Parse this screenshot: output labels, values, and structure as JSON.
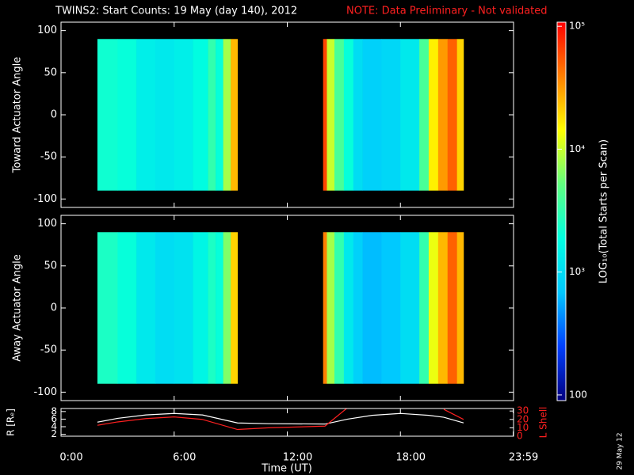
{
  "title": "TWINS2: Start Counts: 19 May (day 140), 2012",
  "note": "NOTE: Data Preliminary - Not validated",
  "xlabel": "Time (UT)",
  "date_stamp": "29 May 12",
  "colorbar": {
    "label": "LOG₁₀(Total Starts per Scan)",
    "log": true,
    "lim": [
      90,
      108000
    ],
    "ticks": [
      100,
      {
        "value": 1000,
        "label": "10³"
      },
      {
        "value": 10000,
        "label": "10⁴"
      },
      {
        "value": 100000,
        "label": "10⁵"
      }
    ],
    "colormap": [
      "#000080",
      "#0040ff",
      "#00c8ff",
      "#00ffe0",
      "#60ff80",
      "#ffff00",
      "#ff8000",
      "#ff0000"
    ]
  },
  "chart_data": [
    {
      "type": "heatmap",
      "ylabel": "Toward Actuator Angle",
      "xlim": [
        0,
        24
      ],
      "xticks": [
        0,
        6,
        12,
        18,
        24
      ],
      "ylim": [
        -110,
        110
      ],
      "yticks": [
        -100,
        -50,
        0,
        50,
        100
      ],
      "angle_range": [
        -90,
        90
      ],
      "x_edges": [
        1.93,
        3,
        4,
        5,
        6,
        7,
        7.8,
        8.2,
        8.6,
        9.0,
        9.36,
        13.9,
        14.1,
        14.5,
        15,
        15.5,
        16,
        17,
        18,
        19,
        19.5,
        20,
        20.5,
        21,
        21.35
      ],
      "values": [
        2200,
        2000,
        1400,
        1250,
        1400,
        1800,
        3200,
        2000,
        8000,
        25000,
        null,
        63000,
        10000,
        4000,
        2000,
        1000,
        800,
        900,
        1250,
        4000,
        16000,
        32000,
        50000,
        20000
      ]
    },
    {
      "type": "heatmap",
      "ylabel": "Away Actuator Angle",
      "xlim": [
        0,
        24
      ],
      "xticks": [
        0,
        6,
        12,
        18,
        24
      ],
      "ylim": [
        -110,
        110
      ],
      "yticks": [
        -100,
        -50,
        0,
        50,
        100
      ],
      "angle_range": [
        -90,
        90
      ],
      "x_edges": [
        1.93,
        3,
        4,
        5,
        6,
        7,
        7.8,
        8.2,
        8.6,
        9.0,
        9.36,
        13.9,
        14.1,
        14.5,
        15,
        15.5,
        16,
        17,
        18,
        19,
        19.5,
        20,
        20.5,
        21,
        21.35
      ],
      "values": [
        2500,
        2000,
        1250,
        1000,
        1100,
        1600,
        2500,
        2000,
        6300,
        20000,
        null,
        40000,
        8000,
        3200,
        1250,
        800,
        630,
        700,
        1000,
        3200,
        12600,
        25000,
        50000,
        25000
      ]
    },
    {
      "type": "line",
      "ylabel": "R [Rₑ]",
      "y2label": "L Shell",
      "xlim": [
        0,
        24
      ],
      "xticks": [
        {
          "value": 0,
          "label": "0:00"
        },
        {
          "value": 6,
          "label": "6:00"
        },
        {
          "value": 12,
          "label": "12:00"
        },
        {
          "value": 18,
          "label": "18:00"
        },
        {
          "value": 23.983,
          "label": "23:59"
        }
      ],
      "ylim": [
        1.5,
        8.8
      ],
      "yticks": [
        2,
        4,
        6,
        8
      ],
      "y2lim": [
        0,
        33
      ],
      "y2ticks": [
        0,
        10,
        20,
        30
      ],
      "x": [
        1.93,
        3,
        4.5,
        6,
        7.5,
        9.36,
        11,
        14,
        15.2,
        16.5,
        18,
        19.5,
        20.3,
        21.35
      ],
      "series": [
        {
          "color": "#ffffff",
          "values": [
            5.2,
            6.2,
            7.1,
            7.5,
            7.1,
            5.0,
            4.8,
            4.7,
            6.0,
            7.0,
            7.5,
            7.0,
            6.5,
            5.0
          ]
        },
        {
          "color": "#ff2020",
          "axis": "y2",
          "values": [
            13,
            17,
            21,
            23,
            20,
            8,
            10,
            12,
            34,
            null,
            null,
            null,
            32,
            20
          ]
        }
      ]
    }
  ]
}
